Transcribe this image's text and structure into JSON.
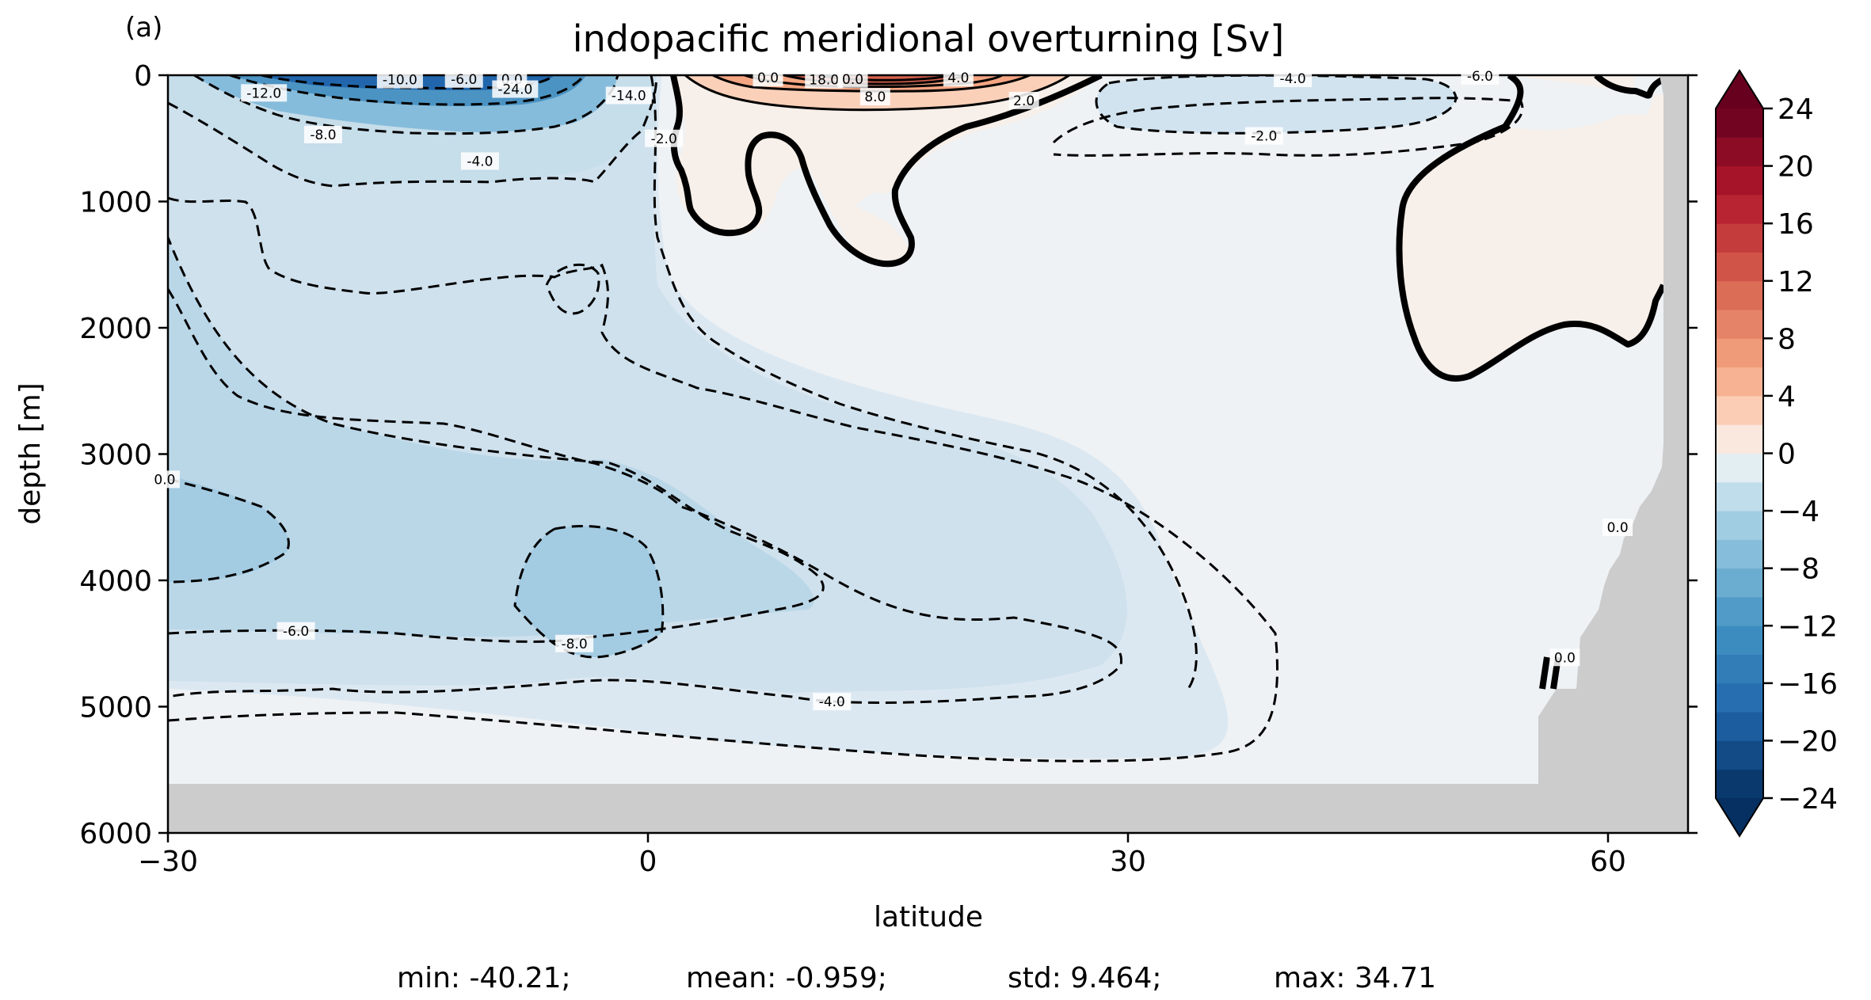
{
  "panel_label": "(a)",
  "chart_data": {
    "type": "contour",
    "title": "indopacific meridional overturning [Sv]",
    "xlabel": "latitude",
    "ylabel": "depth [m]",
    "xlim": [
      -30,
      65
    ],
    "ylim": [
      6000,
      0
    ],
    "x_ticks": [
      -30,
      0,
      30,
      60
    ],
    "x_tick_labels": [
      "−30",
      "0",
      "30",
      "60"
    ],
    "y_ticks": [
      0,
      1000,
      2000,
      3000,
      4000,
      5000,
      6000
    ],
    "y_tick_labels": [
      "0",
      "1000",
      "2000",
      "3000",
      "4000",
      "5000",
      "6000"
    ],
    "colorbar": {
      "colormap": "RdBu_r",
      "levels_min": -24,
      "levels_max": 24,
      "step": 2,
      "extend": "both",
      "ticks": [
        24,
        20,
        16,
        12,
        8,
        4,
        0,
        -4,
        -8,
        -12,
        -16,
        -20,
        -24
      ],
      "tick_labels": [
        "24",
        "20",
        "16",
        "12",
        "8",
        "4",
        "0",
        "−4",
        "−8",
        "−12",
        "−16",
        "−20",
        "−24"
      ]
    },
    "land_color": "#cccccc",
    "contour_labels": [
      {
        "text": "-10.0",
        "lat": -15.5,
        "depth": 35
      },
      {
        "text": "-6.0",
        "lat": -11.5,
        "depth": 30
      },
      {
        "text": "0.0",
        "lat": -8.5,
        "depth": 30
      },
      {
        "text": "-24.0",
        "lat": -8.3,
        "depth": 110
      },
      {
        "text": "-12.0",
        "lat": -24.0,
        "depth": 140
      },
      {
        "text": "-8.0",
        "lat": -20.3,
        "depth": 470
      },
      {
        "text": "-4.0",
        "lat": -10.5,
        "depth": 680
      },
      {
        "text": "-14.0",
        "lat": -1.2,
        "depth": 160
      },
      {
        "text": "-2.0",
        "lat": 1.0,
        "depth": 500
      },
      {
        "text": "0.0",
        "lat": 7.5,
        "depth": 20
      },
      {
        "text": "18.0",
        "lat": 11.0,
        "depth": 35
      },
      {
        "text": "0.0",
        "lat": 12.8,
        "depth": 30
      },
      {
        "text": "8.0",
        "lat": 14.2,
        "depth": 170
      },
      {
        "text": "4.0",
        "lat": 19.4,
        "depth": 20
      },
      {
        "text": "2.0",
        "lat": 23.5,
        "depth": 200
      },
      {
        "text": "-4.0",
        "lat": 40.3,
        "depth": 25
      },
      {
        "text": "-2.0",
        "lat": 38.5,
        "depth": 480
      },
      {
        "text": "-6.0",
        "lat": 52.0,
        "depth": 5
      },
      {
        "text": "0.0",
        "lat": -30.2,
        "depth": 3200
      },
      {
        "text": "-6.0",
        "lat": -22.0,
        "depth": 4400
      },
      {
        "text": "-8.0",
        "lat": -4.6,
        "depth": 4500
      },
      {
        "text": "-4.0",
        "lat": 11.5,
        "depth": 4960
      },
      {
        "text": "0.0",
        "lat": 60.6,
        "depth": 3580
      },
      {
        "text": "0.0",
        "lat": 57.3,
        "depth": 4610
      }
    ],
    "stats": {
      "min": "min: -40.21;",
      "mean": "mean: -0.959;",
      "std": "std: 9.464;",
      "max": "max: 34.71"
    }
  }
}
